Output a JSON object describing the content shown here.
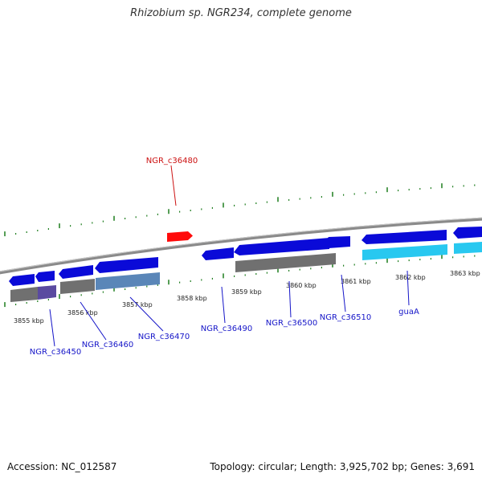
{
  "title": "Rhizobium sp. NGR234, complete genome",
  "footer": {
    "accession": "Accession: NC_012587",
    "summary": "Topology: circular; Length: 3,925,702 bp; Genes: 3,691"
  },
  "colors": {
    "backbone": "#8a8a8a",
    "tick": "#1e7d1e",
    "gene_forward": "#0a0ad8",
    "gene_reverse": "#0a0ad8",
    "gene_highlight": "#ff0a0a",
    "cds_gray": "#707070",
    "cds_cyan": "#28c8f0",
    "cds_steel": "#5a86b8",
    "cds_purple": "#5a4aa0",
    "label_normal": "#1515c8",
    "label_highlight": "#cc1111"
  },
  "scale": {
    "labels": [
      "3855 kbp",
      "3856 kbp",
      "3857 kbp",
      "3858 kbp",
      "3859 kbp",
      "3860 kbp",
      "3861 kbp",
      "3862 kbp",
      "3863 kbp"
    ]
  },
  "genes": {
    "highlight": {
      "name": "NGR_c36480",
      "strand": "forward"
    },
    "labels": [
      "NGR_c36450",
      "NGR_c36460",
      "NGR_c36470",
      "NGR_c36490",
      "NGR_c36500",
      "NGR_c36510",
      "guaA"
    ]
  }
}
